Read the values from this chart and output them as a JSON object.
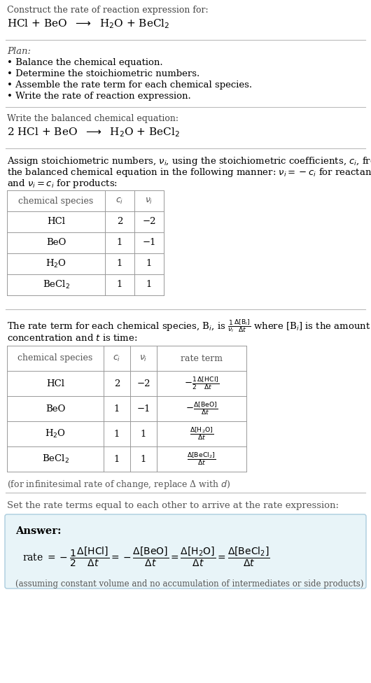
{
  "bg_color": "#ffffff",
  "text_color": "#000000",
  "separator_color": "#bbbbbb",
  "plan_title": "Plan:",
  "plan_items": [
    "• Balance the chemical equation.",
    "• Determine the stoichiometric numbers.",
    "• Assemble the rate term for each chemical species.",
    "• Write the rate of reaction expression."
  ],
  "table1_headers": [
    "chemical species",
    "$c_i$",
    "$\\nu_i$"
  ],
  "table1_rows": [
    [
      "HCl",
      "2",
      "−2"
    ],
    [
      "BeO",
      "1",
      "−1"
    ],
    [
      "H$_2$O",
      "1",
      "1"
    ],
    [
      "BeCl$_2$",
      "1",
      "1"
    ]
  ],
  "table2_headers": [
    "chemical species",
    "$c_i$",
    "$\\nu_i$",
    "rate term"
  ],
  "table2_rows": [
    [
      "HCl",
      "2",
      "−2",
      "$-\\frac{1}{2}\\frac{\\Delta[\\mathrm{HCl}]}{\\Delta t}$"
    ],
    [
      "BeO",
      "1",
      "−1",
      "$-\\frac{\\Delta[\\mathrm{BeO}]}{\\Delta t}$"
    ],
    [
      "H$_2$O",
      "1",
      "1",
      "$\\frac{\\Delta[\\mathrm{H_2O}]}{\\Delta t}$"
    ],
    [
      "BeCl$_2$",
      "1",
      "1",
      "$\\frac{\\Delta[\\mathrm{BeCl_2}]}{\\Delta t}$"
    ]
  ],
  "infinitesimal_note": "(for infinitesimal rate of change, replace Δ with $d$)",
  "section5_intro": "Set the rate terms equal to each other to arrive at the rate expression:",
  "answer_bg": "#e8f4f8",
  "answer_border": "#aaccdd",
  "answer_label": "Answer:",
  "answer_note": "(assuming constant volume and no accumulation of intermediates or side products)"
}
